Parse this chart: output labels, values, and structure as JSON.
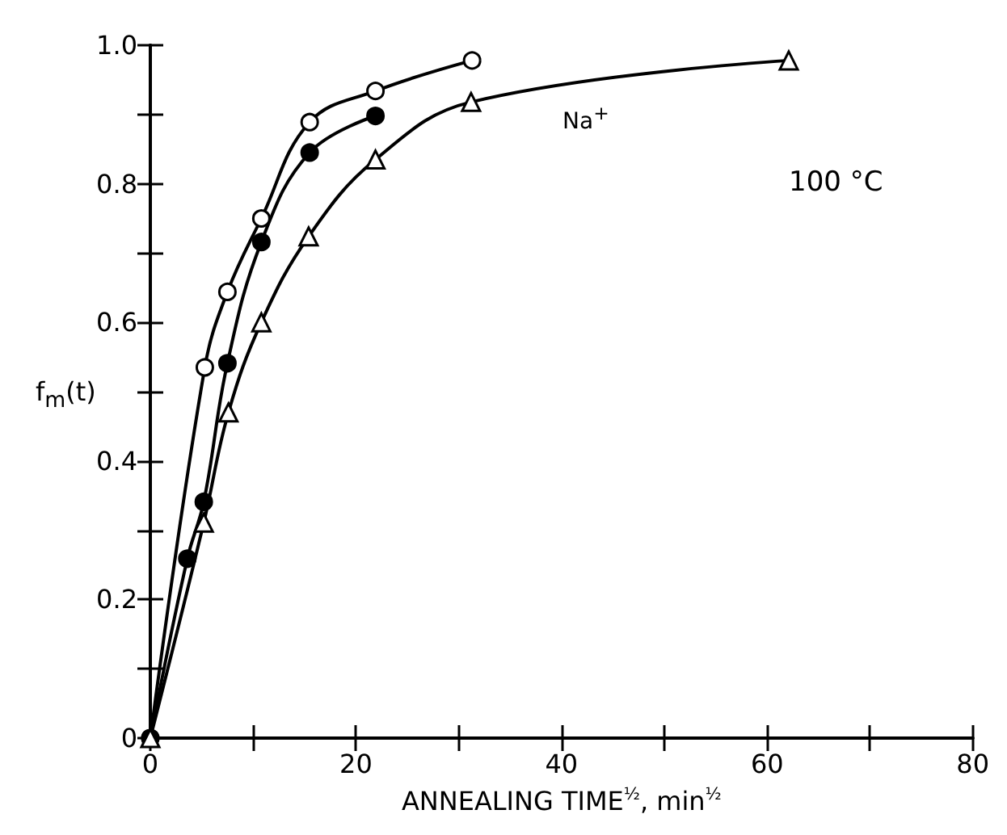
{
  "chart_data": {
    "type": "line",
    "xlabel": "ANNEALING TIME$^{½}$, min$^{½}$",
    "ylabel": "f$_{m}$(t)",
    "xlim": [
      0,
      80
    ],
    "xticks": [
      0,
      {
        "value": 10,
        "label": null
      },
      20,
      {
        "value": 30,
        "label": null
      },
      40,
      {
        "value": 50,
        "label": null
      },
      60,
      {
        "value": 70,
        "label": null
      },
      80
    ],
    "ylim": [
      0,
      1
    ],
    "yticks": [
      0,
      {
        "value": 0.1,
        "label": null
      },
      0.2,
      {
        "value": 0.3,
        "label": null
      },
      0.4,
      {
        "value": 0.5,
        "label": null
      },
      0.6,
      {
        "value": 0.7,
        "label": null
      },
      0.8,
      {
        "value": 0.9,
        "label": null
      },
      {
        "value": 1,
        "label": "1.0"
      }
    ],
    "series": [
      {
        "color": "#000000",
        "marker": "circle",
        "x": [
          0,
          5.3,
          7.5,
          10.8,
          15.5,
          21.9,
          31.3
        ],
        "values": [
          0,
          0.535,
          0.644,
          0.75,
          0.889,
          0.934,
          0.978
        ]
      },
      {
        "color": "#000000",
        "colors": [
          "#000000",
          "#000000",
          "#000000",
          "#000000",
          "#000000",
          "#000000",
          "#000000"
        ],
        "marker": "circle",
        "x": [
          0,
          3.6,
          5.2,
          7.5,
          10.8,
          15.5,
          21.9
        ],
        "values": [
          0,
          0.259,
          0.341,
          0.541,
          0.716,
          0.845,
          0.898
        ]
      },
      {
        "color": "#000000",
        "marker": "triangle",
        "x": [
          0,
          5.2,
          7.6,
          10.8,
          15.4,
          21.9,
          31.2,
          62.1
        ],
        "values": [
          0,
          0.311,
          0.47,
          0.6,
          0.724,
          0.835,
          0.918,
          0.978
        ]
      }
    ],
    "annotations": [
      "Na$^{+}$",
      "100 °C"
    ],
    "line_style": "solid",
    "grid": false
  }
}
